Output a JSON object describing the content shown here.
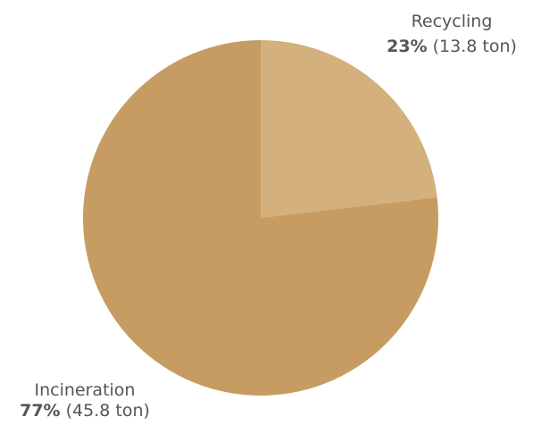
{
  "chart_data": {
    "type": "pie",
    "title": "",
    "unit": "ton",
    "slices": [
      {
        "label": "Recycling",
        "value": 13.8,
        "percent_label": "23%",
        "value_label": "(13.8 ton)",
        "color": "#D3B07C"
      },
      {
        "label": "Incineration",
        "value": 45.8,
        "percent_label": "77%",
        "value_label": "(45.8 ton)",
        "color": "#C69C62"
      }
    ],
    "start_angle_deg": 0,
    "direction": "clockwise",
    "legend": "none"
  }
}
